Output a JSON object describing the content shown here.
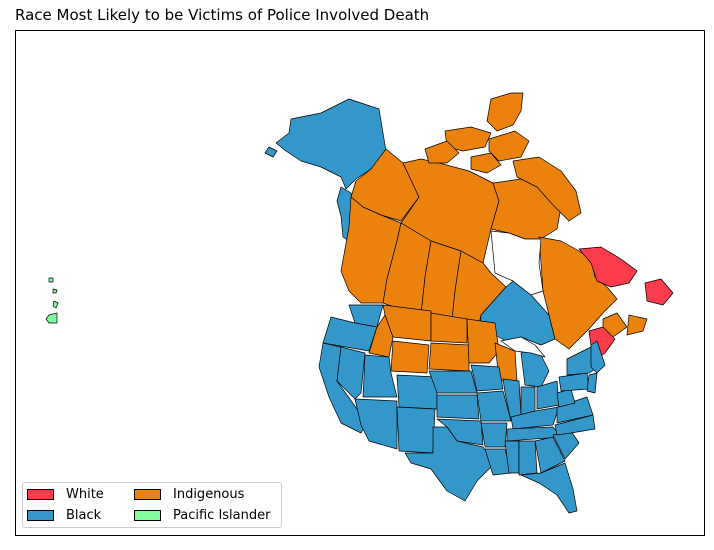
{
  "title": "Race Most Likely to be Victims of Police Involved Death",
  "colors": {
    "white": "#fa3c4c",
    "black": "#3497c9",
    "indigenous": "#eb820e",
    "pacific_islander": "#80fb9e"
  },
  "legend": {
    "items": [
      {
        "label": "White",
        "color": "#fa3c4c"
      },
      {
        "label": "Indigenous",
        "color": "#eb820e"
      },
      {
        "label": "Black",
        "color": "#3497c9"
      },
      {
        "label": "Pacific Islander",
        "color": "#80fb9e"
      }
    ]
  }
}
